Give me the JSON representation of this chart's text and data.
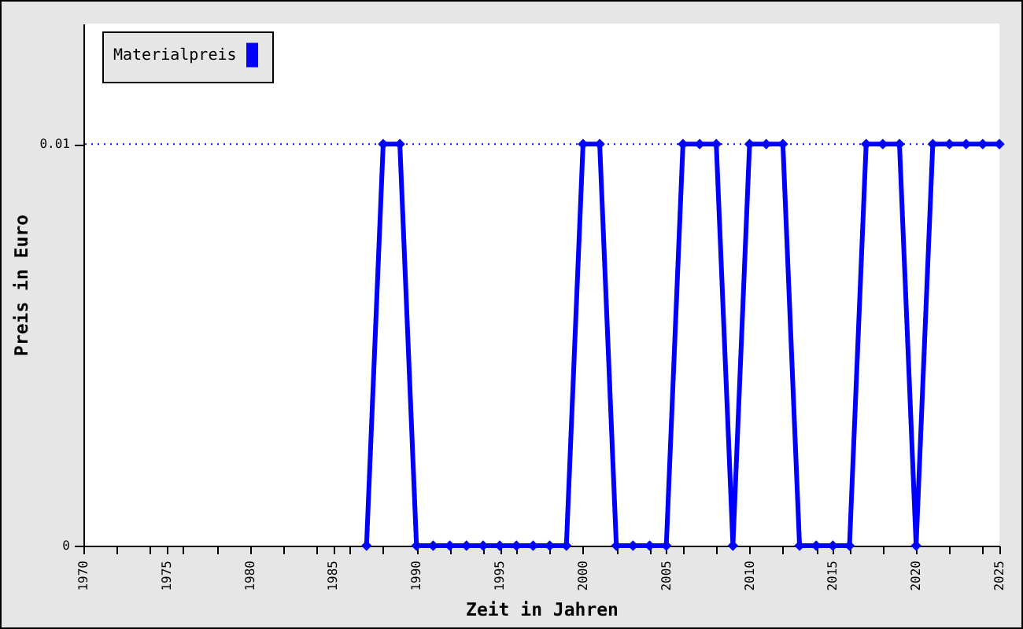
{
  "chart_data": {
    "type": "line",
    "xlabel": "Zeit in Jahren",
    "ylabel": "Preis in Euro",
    "x": [
      1987,
      1988,
      1989,
      1990,
      1991,
      1992,
      1993,
      1994,
      1995,
      1996,
      1997,
      1998,
      1999,
      2000,
      2001,
      2002,
      2003,
      2004,
      2005,
      2006,
      2007,
      2008,
      2009,
      2010,
      2011,
      2012,
      2013,
      2014,
      2015,
      2016,
      2017,
      2018,
      2019,
      2020,
      2021,
      2022,
      2023,
      2024,
      2025
    ],
    "series": [
      {
        "name": "Materialpreis",
        "color": "#0000ff",
        "values": [
          0,
          0.01,
          0.01,
          0,
          0,
          0,
          0,
          0,
          0,
          0,
          0,
          0,
          0,
          0.01,
          0.01,
          0,
          0,
          0,
          0,
          0.01,
          0.01,
          0.01,
          0,
          0.01,
          0.01,
          0.01,
          0,
          0,
          0,
          0,
          0.01,
          0.01,
          0.01,
          0,
          0.01,
          0.01,
          0.01,
          0.01,
          0.01
        ]
      }
    ],
    "xlim": [
      1970,
      2025
    ],
    "xticks": [
      1970,
      {
        "value": 1972,
        "label": null
      },
      {
        "value": 1974,
        "label": null
      },
      1975,
      {
        "value": 1976,
        "label": null
      },
      {
        "value": 1978,
        "label": null
      },
      1980,
      {
        "value": 1982,
        "label": null
      },
      {
        "value": 1984,
        "label": null
      },
      1985,
      {
        "value": 1986,
        "label": null
      },
      {
        "value": 1988,
        "label": null
      },
      1990,
      {
        "value": 1992,
        "label": null
      },
      {
        "value": 1994,
        "label": null
      },
      1995,
      {
        "value": 1996,
        "label": null
      },
      {
        "value": 1998,
        "label": null
      },
      2000,
      {
        "value": 2002,
        "label": null
      },
      {
        "value": 2004,
        "label": null
      },
      2005,
      {
        "value": 2006,
        "label": null
      },
      {
        "value": 2008,
        "label": null
      },
      2010,
      {
        "value": 2012,
        "label": null
      },
      {
        "value": 2014,
        "label": null
      },
      2015,
      {
        "value": 2016,
        "label": null
      },
      {
        "value": 2018,
        "label": null
      },
      2020,
      {
        "value": 2022,
        "label": null
      },
      {
        "value": 2024,
        "label": null
      },
      2025
    ],
    "ylim": [
      0,
      0.013
    ],
    "yticks": [
      0,
      0.01
    ],
    "ref_lines": [
      {
        "axis": "y",
        "value": 0.01,
        "color": "#0000ff",
        "line_style": "dotted"
      }
    ],
    "legend": "top left",
    "marker": "diamond",
    "line_style": "solid"
  }
}
